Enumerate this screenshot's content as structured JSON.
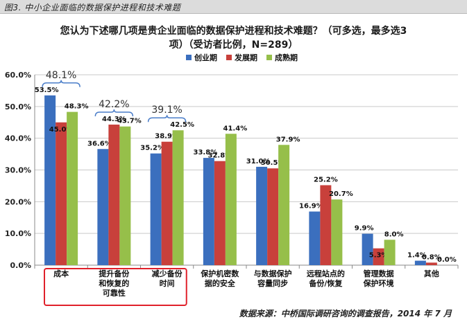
{
  "caption": "图3. 中小企业面临的数据保护进程和技术难题",
  "chart_data": {
    "type": "bar",
    "title_line1": "您认为下述哪几项是贵企业面临的数据保护进程和技术难题？（可多选，最多选3",
    "title_line2": "项）（受访者比例，N=289）",
    "categories": [
      [
        "成本"
      ],
      [
        "提升备份",
        "和恢复的",
        "可靠性"
      ],
      [
        "减少备份",
        "时间"
      ],
      [
        "保护机密数",
        "据的安全"
      ],
      [
        "与数据保护",
        "容量同步"
      ],
      [
        "远程站点的",
        "备份/恢复"
      ],
      [
        "管理数据",
        "保护环境"
      ],
      [
        "其他"
      ]
    ],
    "series": [
      {
        "name": "创业期",
        "color": "#3b6fbe",
        "values": [
          53.5,
          36.6,
          35.2,
          33.8,
          31.0,
          16.9,
          9.9,
          1.4
        ],
        "labels": [
          "53.5%",
          "36.6%",
          "35.2%",
          "33.8%",
          "31.0%",
          "16.9%",
          "9.9%",
          "1.4%"
        ]
      },
      {
        "name": "发展期",
        "color": "#c8403b",
        "values": [
          45.0,
          44.3,
          38.9,
          32.8,
          30.5,
          25.2,
          5.3,
          0.8
        ],
        "labels": [
          "45.0%",
          "44.3%",
          "38.9%",
          "32.8%",
          "30.5%",
          "25.2%",
          "5.3%",
          "0.8%"
        ]
      },
      {
        "name": "成熟期",
        "color": "#96bf4a",
        "values": [
          48.3,
          43.7,
          42.5,
          41.4,
          37.9,
          20.7,
          8.0,
          0.0
        ],
        "labels": [
          "48.3%",
          "43.7%",
          "42.5%",
          "41.4%",
          "37.9%",
          "20.7%",
          "8.0%",
          "0.0%"
        ]
      }
    ],
    "ylim": [
      0,
      60
    ],
    "yticks": [
      "0.0%",
      "10.0%",
      "20.0%",
      "30.0%",
      "40.0%",
      "50.0%",
      "60.0%"
    ],
    "grid": true,
    "legend_position": "top-center",
    "annotations": [
      {
        "text": "48.1%",
        "category_index": 0
      },
      {
        "text": "42.2%",
        "category_index": 1
      },
      {
        "text": "39.1%",
        "category_index": 2
      }
    ],
    "highlight_categories": [
      0,
      1,
      2
    ]
  },
  "source": "数据来源：中桥国际调研咨询的调查报告，2014 年 7 月"
}
